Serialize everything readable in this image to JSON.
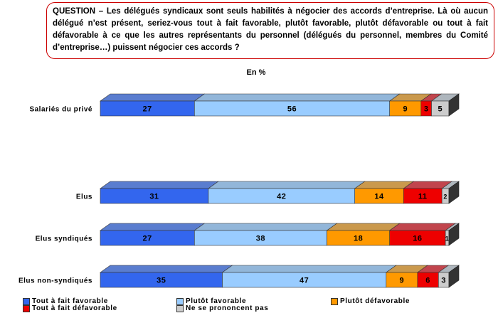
{
  "question": {
    "label": "QUESTION –",
    "text": " Les délégués syndicaux sont seuls habilités à négocier des accords d’entreprise. Là où aucun délégué n’est présent, seriez-vous tout à fait favorable, plutôt favorable, plutôt défavorable ou tout à fait défavorable à ce que les autres représentants du personnel (délégués du personnel, membres du Comité d’entreprise…) puissent négocier ces accords ?"
  },
  "unit_label": "En %",
  "colors": {
    "tout_favorable": "#3366ee",
    "plutot_favorable": "#99ccff",
    "plutot_defavorable": "#ff9900",
    "tout_defavorable": "#ee0000",
    "ne_se_prononcent_pas": "#cccccc",
    "side": "#333333",
    "top_tint": "#8a9aaa"
  },
  "chart_data": {
    "type": "bar",
    "orientation": "horizontal",
    "stacked": true,
    "title": "",
    "xlabel": "",
    "ylabel": "",
    "unit": "En %",
    "categories": [
      "Salariés du privé",
      "Elus",
      "Elus syndiqués",
      "Elus non-syndiqués"
    ],
    "series": [
      {
        "name": "Tout à fait favorable",
        "values": [
          27,
          31,
          27,
          35
        ]
      },
      {
        "name": "Plutôt favorable",
        "values": [
          56,
          42,
          38,
          47
        ]
      },
      {
        "name": "Plutôt défavorable",
        "values": [
          9,
          14,
          18,
          9
        ]
      },
      {
        "name": "Tout à fait défavorable",
        "values": [
          3,
          11,
          16,
          6
        ]
      },
      {
        "name": "Ne se prononcent pas",
        "values": [
          5,
          2,
          1,
          3
        ]
      }
    ],
    "xlim": [
      0,
      100
    ],
    "legend_position": "bottom",
    "grid": false
  }
}
